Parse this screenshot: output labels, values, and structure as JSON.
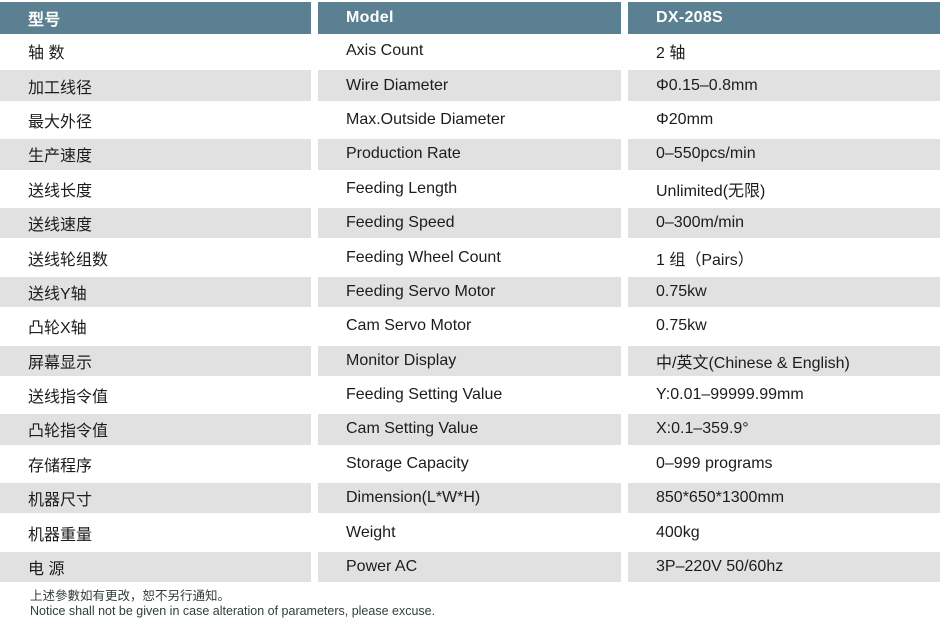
{
  "table": {
    "header": {
      "col_cn": "型号",
      "col_en": "Model",
      "col_value": "DX-208S"
    },
    "rows": [
      {
        "cn": "轴 数",
        "en": "Axis Count",
        "value": "2 轴"
      },
      {
        "cn": "加工线径",
        "en": "Wire Diameter",
        "value": "Φ0.15–0.8mm"
      },
      {
        "cn": "最大外径",
        "en": "Max.Outside Diameter",
        "value": "Φ20mm"
      },
      {
        "cn": "生产速度",
        "en": "Production Rate",
        "value": "0–550pcs/min"
      },
      {
        "cn": "送线长度",
        "en": "Feeding Length",
        "value": "Unlimited(无限)"
      },
      {
        "cn": "送线速度",
        "en": "Feeding Speed",
        "value": "0–300m/min"
      },
      {
        "cn": "送线轮组数",
        "en": "Feeding Wheel Count",
        "value": "1 组（Pairs）"
      },
      {
        "cn": "送线Y轴",
        "en": "Feeding Servo Motor",
        "value": "0.75kw"
      },
      {
        "cn": "凸轮X轴",
        "en": "Cam Servo Motor",
        "value": "0.75kw"
      },
      {
        "cn": "屏幕显示",
        "en": "Monitor Display",
        "value": "中/英文(Chinese & English)"
      },
      {
        "cn": "送线指令值",
        "en": "Feeding Setting Value",
        "value": "Y:0.01–99999.99mm"
      },
      {
        "cn": "凸轮指令值",
        "en": "Cam Setting Value",
        "value": "X:0.1–359.9°"
      },
      {
        "cn": "存储程序",
        "en": "Storage Capacity",
        "value": "0–999 programs"
      },
      {
        "cn": "机器尺寸",
        "en": "Dimension(L*W*H)",
        "value": "850*650*1300mm"
      },
      {
        "cn": "机器重量",
        "en": "Weight",
        "value": "400kg"
      },
      {
        "cn": "电 源",
        "en": "Power AC",
        "value": "3P–220V 50/60hz"
      }
    ]
  },
  "footer": {
    "note_cn": "上述參數如有更改，恕不另行通知。",
    "note_en": "Notice shall not be given in case alteration of parameters, please excuse."
  },
  "colors": {
    "header_bg": "#5a8092",
    "header_text": "#ffffff",
    "alt_row_bg": "#e1e1e1",
    "body_text": "#1c1c1c",
    "footer_text": "#333d3d"
  }
}
